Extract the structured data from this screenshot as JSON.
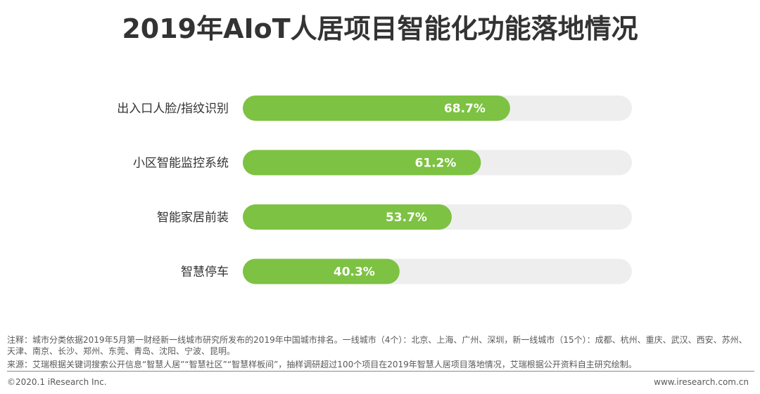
{
  "chart_data": {
    "type": "bar",
    "orientation": "horizontal",
    "title": "2019年AIoT人居项目智能化功能落地情况",
    "categories": [
      "出入口人脸/指纹识别",
      "小区智能监控系统",
      "智能家居前装",
      "智慧停车"
    ],
    "values": [
      68.7,
      61.2,
      53.7,
      40.3
    ],
    "value_labels": [
      "68.7%",
      "61.2%",
      "53.7%",
      "40.3%"
    ],
    "xlim": [
      0,
      100
    ],
    "bar_color": "#7dc242",
    "track_color": "#eeeeee",
    "grid": false,
    "legend": "none"
  },
  "notes": {
    "note": "注释：城市分类依据2019年5月第一财经新一线城市研究所发布的2019年中国城市排名。一线城市（4个）：北京、上海、广州、深圳，新一线城市（15个）：成都、杭州、重庆、武汉、西安、苏州、天津、南京、长沙、郑州、东莞、青岛、沈阳、宁波、昆明。",
    "source": "来源：艾瑞根据关键词搜索公开信息“智慧人居”“智慧社区”“智慧样板间”，抽样调研超过100个项目在2019年智慧人居项目落地情况，艾瑞根据公开资料自主研究绘制。"
  },
  "footer": {
    "copyright": "©2020.1 iResearch Inc.",
    "website": "www.iresearch.com.cn"
  }
}
